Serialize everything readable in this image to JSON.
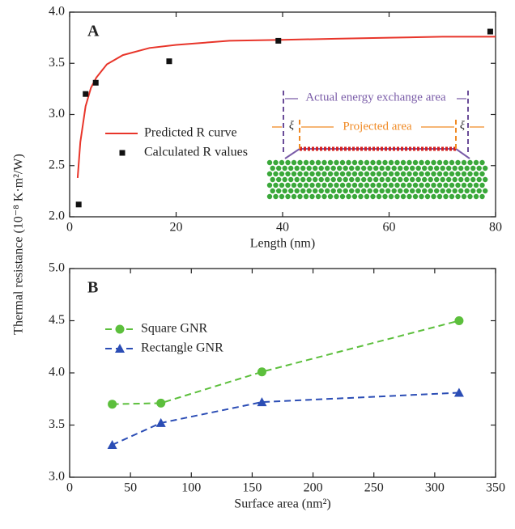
{
  "chart_data": [
    {
      "type": "scatter",
      "panel": "A",
      "xlabel": "Length (nm)",
      "ylabel": "Thermal resistance (10⁻⁸ K·m²/W)",
      "xlim": [
        0,
        80
      ],
      "xticks": [
        0,
        20,
        40,
        60,
        80
      ],
      "ylim": [
        2,
        4
      ],
      "yticks": [
        {
          "value": 2,
          "label": "2.0"
        },
        {
          "value": 2.5,
          "label": "2.5"
        },
        {
          "value": 3,
          "label": "3.0"
        },
        {
          "value": 3.5,
          "label": "3.5"
        },
        {
          "value": 4,
          "label": "4.0"
        }
      ],
      "series": [
        {
          "name": "Predicted R curve",
          "color": "#e8352a",
          "style": "line",
          "x": [
            1.5,
            2,
            3,
            4,
            5,
            7,
            10,
            15,
            20,
            30,
            40,
            50,
            60,
            70,
            80
          ],
          "values": [
            2.38,
            2.73,
            3.08,
            3.26,
            3.36,
            3.49,
            3.58,
            3.65,
            3.68,
            3.72,
            3.73,
            3.74,
            3.75,
            3.76,
            3.76
          ]
        },
        {
          "name": "Calculated R values",
          "color": "#111111",
          "style": "marker",
          "marker": "square",
          "x": [
            1.7,
            3,
            4.9,
            18.7,
            39.2,
            79
          ],
          "values": [
            2.12,
            3.2,
            3.31,
            3.52,
            3.72,
            3.81
          ]
        }
      ],
      "annotations": [
        "Actual energy exchange area",
        "Projected area",
        "ξ",
        "ξ"
      ]
    },
    {
      "type": "line",
      "panel": "B",
      "xlabel": "Surface area (nm²)",
      "xlim": [
        0,
        350
      ],
      "xticks": [
        0,
        50,
        100,
        150,
        200,
        250,
        300,
        350
      ],
      "ylim": [
        3,
        5
      ],
      "yticks": [
        {
          "value": 3,
          "label": "3.0"
        },
        {
          "value": 3.5,
          "label": "3.5"
        },
        {
          "value": 4,
          "label": "4.0"
        },
        {
          "value": 4.5,
          "label": "4.5"
        },
        {
          "value": 5,
          "label": "5.0"
        }
      ],
      "series": [
        {
          "name": "Square GNR",
          "color": "#5cbf3c",
          "marker": "circle",
          "dashed": true,
          "x": [
            35,
            75,
            158,
            320
          ],
          "values": [
            3.7,
            3.71,
            4.01,
            4.5
          ]
        },
        {
          "name": "Rectangle GNR",
          "color": "#2b4db5",
          "marker": "triangle",
          "dashed": true,
          "x": [
            35,
            75,
            158,
            320
          ],
          "values": [
            3.31,
            3.52,
            3.72,
            3.81
          ]
        }
      ]
    }
  ]
}
